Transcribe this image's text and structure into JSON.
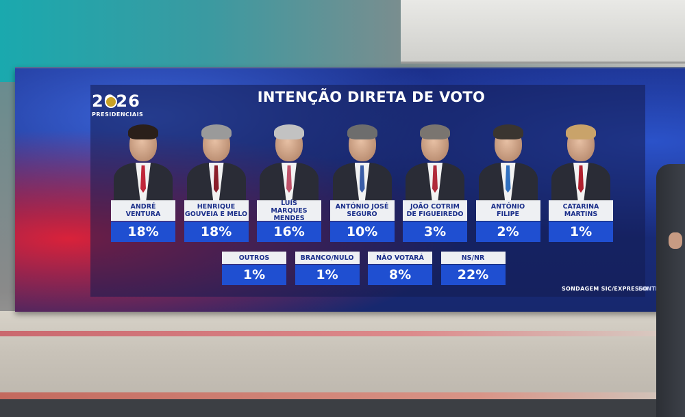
{
  "logo": {
    "year": "2026",
    "subtitle": "PRESIDENCIAIS"
  },
  "title": "INTENÇÃO DIRETA DE VOTO",
  "candidates": [
    {
      "name": "ANDRÉ\nVENTURA",
      "pct": "18%",
      "tie_color": "#c0263a",
      "hair_color": "#2a1f1a"
    },
    {
      "name": "HENRIQUE\nGOUVEIA E MELO",
      "pct": "18%",
      "tie_color": "#8a1e2a",
      "hair_color": "#9a9a9a"
    },
    {
      "name": "LUÍS\nMARQUES MENDES",
      "pct": "16%",
      "tie_color": "#c0526a",
      "hair_color": "#c2c2c2"
    },
    {
      "name": "ANTÓNIO JOSÉ\nSEGURO",
      "pct": "10%",
      "tie_color": "#3a5da8",
      "hair_color": "#6d6d6d"
    },
    {
      "name": "JOÃO COTRIM\nDE FIGUEIREDO",
      "pct": "3%",
      "tie_color": "#b02a3a",
      "hair_color": "#7a7570"
    },
    {
      "name": "ANTÓNIO\nFILIPE",
      "pct": "2%",
      "tie_color": "#3070c0",
      "hair_color": "#3a3530"
    },
    {
      "name": "CATARINA\nMARTINS",
      "pct": "1%",
      "tie_color": "#b01f2e",
      "hair_color": "#c9a36a"
    }
  ],
  "others": [
    {
      "name": "OUTROS",
      "pct": "1%"
    },
    {
      "name": "BRANCO/NULO",
      "pct": "1%"
    },
    {
      "name": "NÃO VOTARÁ",
      "pct": "8%"
    },
    {
      "name": "NS/NR",
      "pct": "22%"
    }
  ],
  "source": {
    "label": "SONDAGEM SIC/EXPRESSO",
    "fonte": "FONTE: I"
  }
}
